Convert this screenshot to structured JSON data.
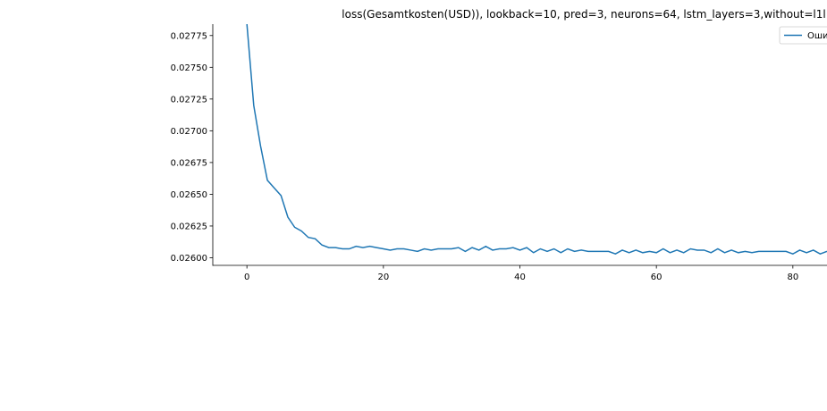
{
  "chart_data": {
    "type": "line",
    "title": "loss(Gesamtkosten(USD)), lookback=10, pred=3, neurons=64, lstm_layers=3,without=l1l",
    "xlabel": "",
    "ylabel": "",
    "xlim": [
      -5,
      85
    ],
    "ylim": [
      0.02594,
      0.02784
    ],
    "grid": false,
    "legend_placement": "top-right",
    "line_color": "#1f77b4",
    "x_ticks": [
      0,
      20,
      40,
      60,
      80
    ],
    "x_tick_labels": [
      "0",
      "20",
      "40",
      "60",
      "80"
    ],
    "y_ticks": [
      0.026,
      0.02625,
      0.0265,
      0.02675,
      0.027,
      0.02725,
      0.0275,
      0.02775
    ],
    "y_tick_labels": [
      "0.02600",
      "0.02625",
      "0.02650",
      "0.02675",
      "0.02700",
      "0.02725",
      "0.02750",
      "0.02775"
    ],
    "series": [
      {
        "name": "Оши",
        "x": [
          0,
          1,
          2,
          3,
          4,
          5,
          6,
          7,
          8,
          9,
          10,
          11,
          12,
          13,
          14,
          15,
          16,
          17,
          18,
          19,
          20,
          21,
          22,
          23,
          24,
          25,
          26,
          27,
          28,
          29,
          30,
          31,
          32,
          33,
          34,
          35,
          36,
          37,
          38,
          39,
          40,
          41,
          42,
          43,
          44,
          45,
          46,
          47,
          48,
          49,
          50,
          51,
          52,
          53,
          54,
          55,
          56,
          57,
          58,
          59,
          60,
          61,
          62,
          63,
          64,
          65,
          66,
          67,
          68,
          69,
          70,
          71,
          72,
          73,
          74,
          75,
          76,
          77,
          78,
          79,
          80,
          81,
          82,
          83,
          84,
          85
        ],
        "values": [
          0.02784,
          0.0272,
          0.02688,
          0.02661,
          0.02655,
          0.02649,
          0.02632,
          0.02624,
          0.02621,
          0.02616,
          0.02615,
          0.0261,
          0.02608,
          0.02608,
          0.02607,
          0.02607,
          0.02609,
          0.02608,
          0.02609,
          0.02608,
          0.02607,
          0.02606,
          0.02607,
          0.02607,
          0.02606,
          0.02605,
          0.02607,
          0.02606,
          0.02607,
          0.02607,
          0.02607,
          0.02608,
          0.02605,
          0.02608,
          0.02606,
          0.02609,
          0.02606,
          0.02607,
          0.02607,
          0.02608,
          0.02606,
          0.02608,
          0.02604,
          0.02607,
          0.02605,
          0.02607,
          0.02604,
          0.02607,
          0.02605,
          0.02606,
          0.02605,
          0.02605,
          0.02605,
          0.02605,
          0.02603,
          0.02606,
          0.02604,
          0.02606,
          0.02604,
          0.02605,
          0.02604,
          0.02607,
          0.02604,
          0.02606,
          0.02604,
          0.02607,
          0.02606,
          0.02606,
          0.02604,
          0.02607,
          0.02604,
          0.02606,
          0.02604,
          0.02605,
          0.02604,
          0.02605,
          0.02605,
          0.02605,
          0.02605,
          0.02605,
          0.02603,
          0.02606,
          0.02604,
          0.02606,
          0.02603,
          0.02605
        ]
      }
    ]
  }
}
